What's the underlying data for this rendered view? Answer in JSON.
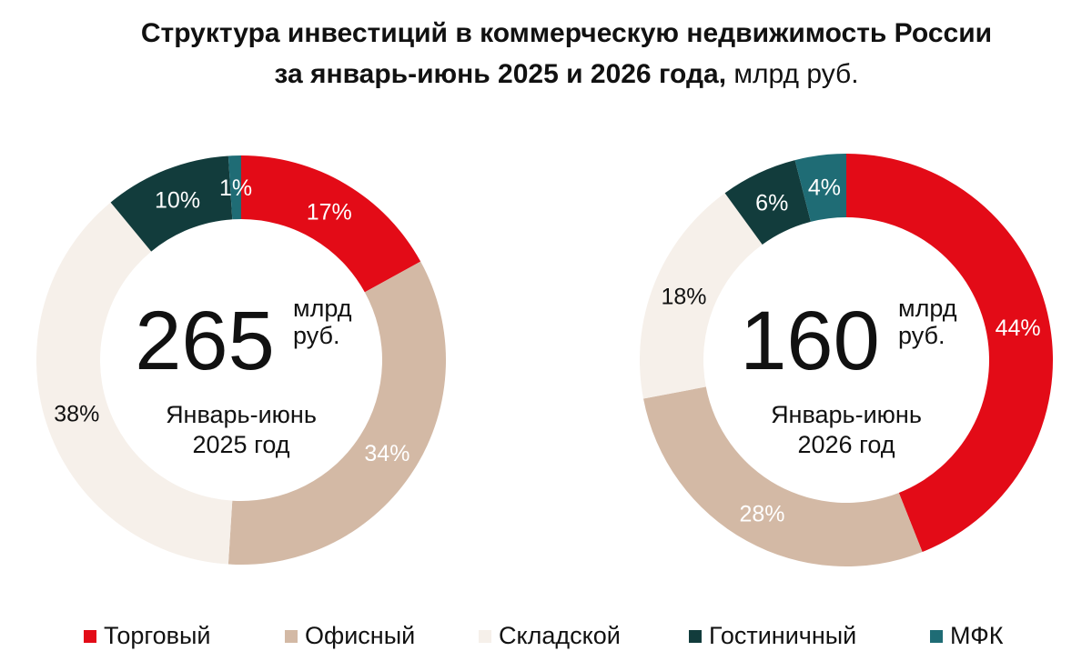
{
  "title": {
    "line1": "Структура инвестиций в коммерческую недвижимость России",
    "line2_bold": "за январь-июнь 2025 и 2026 года,",
    "line2_regular": " млрд руб."
  },
  "colors": {
    "retail": "#e30b17",
    "office": "#d3b9a5",
    "warehouse": "#f6f0ea",
    "hotel": "#123c3c",
    "mfc": "#1f6c75"
  },
  "chart_data": [
    {
      "type": "pie",
      "variant": "donut",
      "total": "265",
      "total_unit_line1": "млрд",
      "total_unit_line2": "руб.",
      "period_line1": "Январь-июнь",
      "period_line2": "2025 год",
      "series": [
        {
          "name": "Торговый",
          "value": 17,
          "label": "17%"
        },
        {
          "name": "Офисный",
          "value": 34,
          "label": "34%"
        },
        {
          "name": "Складской",
          "value": 38,
          "label": "38%"
        },
        {
          "name": "Гостиничный",
          "value": 10,
          "label": "10%"
        },
        {
          "name": "МФК",
          "value": 1,
          "label": "1%"
        }
      ]
    },
    {
      "type": "pie",
      "variant": "donut",
      "total": "160",
      "total_unit_line1": "млрд",
      "total_unit_line2": "руб.",
      "period_line1": "Январь-июнь",
      "period_line2": "2026 год",
      "series": [
        {
          "name": "Торговый",
          "value": 44,
          "label": "44%"
        },
        {
          "name": "Офисный",
          "value": 28,
          "label": "28%"
        },
        {
          "name": "Складской",
          "value": 18,
          "label": "18%"
        },
        {
          "name": "Гостиничный",
          "value": 6,
          "label": "6%"
        },
        {
          "name": "МФК",
          "value": 4,
          "label": "4%"
        }
      ]
    }
  ],
  "legend": [
    {
      "label": "Торговый",
      "color": "#e30b17"
    },
    {
      "label": "Офисный",
      "color": "#d3b9a5"
    },
    {
      "label": "Складской",
      "color": "#f6f0ea"
    },
    {
      "label": "Гостиничный",
      "color": "#123c3c"
    },
    {
      "label": "МФК",
      "color": "#1f6c75"
    }
  ]
}
